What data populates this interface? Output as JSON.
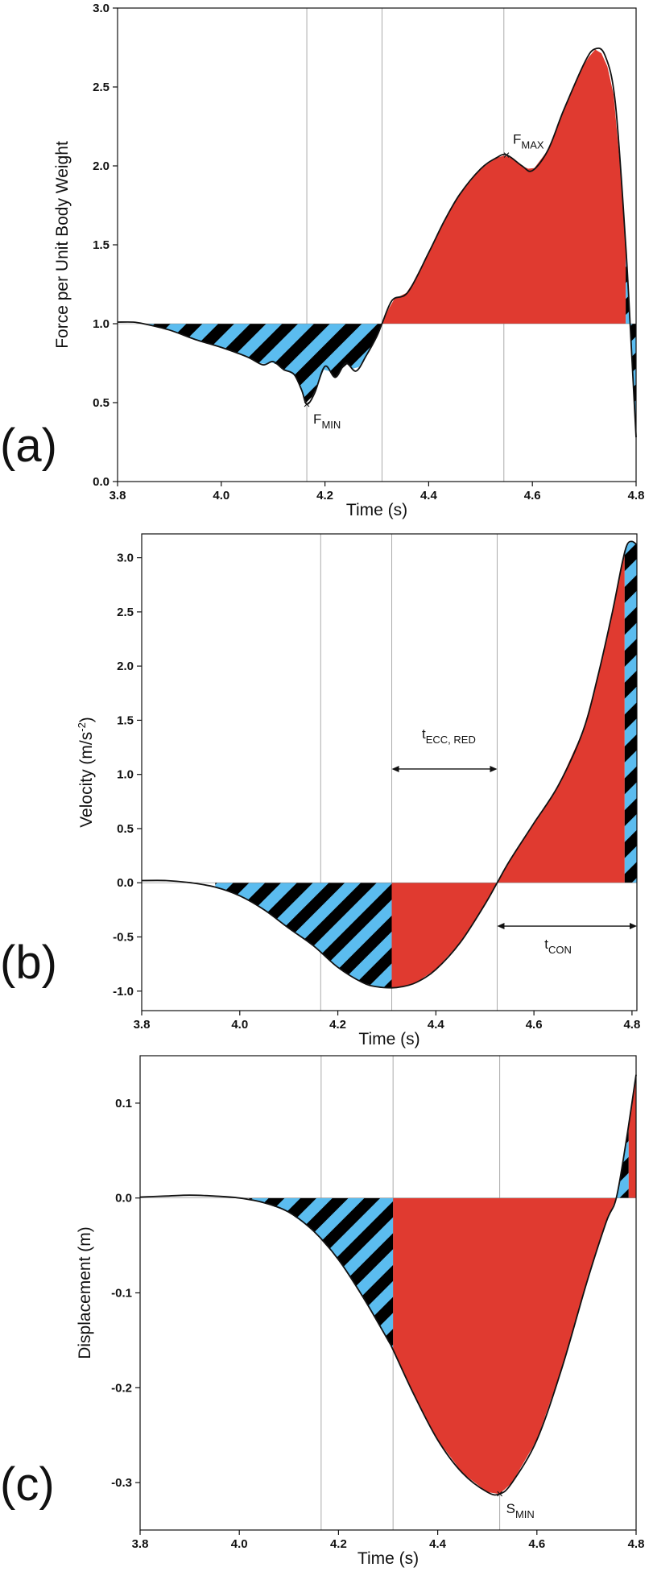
{
  "chart_data": [
    {
      "type": "area",
      "panel_label": "(a)",
      "xlabel": "Time (s)",
      "ylabel": "Force per Unit Body Weight",
      "xlim": [
        3.8,
        4.8
      ],
      "ylim": [
        0.0,
        3.0
      ],
      "xticks": [
        "3.8",
        "4.0",
        "4.2",
        "4.4",
        "4.6",
        "4.8"
      ],
      "yticks": [
        "0.0",
        "0.5",
        "1.0",
        "1.5",
        "2.0",
        "2.5",
        "3.0"
      ],
      "baseline": 1.0,
      "vlines": [
        4.165,
        4.31,
        4.545
      ],
      "series": [
        {
          "name": "force",
          "x": [
            3.8,
            3.83,
            3.85,
            3.9,
            3.95,
            4.0,
            4.05,
            4.08,
            4.1,
            4.12,
            4.14,
            4.155,
            4.165,
            4.18,
            4.2,
            4.22,
            4.24,
            4.26,
            4.28,
            4.3,
            4.31,
            4.33,
            4.36,
            4.4,
            4.43,
            4.46,
            4.5,
            4.53,
            4.55,
            4.58,
            4.6,
            4.63,
            4.66,
            4.7,
            4.72,
            4.74,
            4.76,
            4.78,
            4.79,
            4.8
          ],
          "y": [
            1.01,
            1.01,
            1.0,
            0.96,
            0.9,
            0.85,
            0.79,
            0.74,
            0.76,
            0.71,
            0.68,
            0.58,
            0.49,
            0.56,
            0.73,
            0.66,
            0.75,
            0.7,
            0.8,
            0.92,
            1.0,
            1.15,
            1.2,
            1.45,
            1.65,
            1.82,
            1.98,
            2.05,
            2.07,
            2.0,
            1.97,
            2.1,
            2.35,
            2.65,
            2.74,
            2.7,
            2.4,
            1.5,
            0.9,
            0.28
          ]
        }
      ],
      "annotations": [
        {
          "label": "F",
          "sub": "MIN",
          "x": 4.165,
          "y": 0.49
        },
        {
          "label": "F",
          "sub": "MAX",
          "x": 4.55,
          "y": 2.07
        }
      ]
    },
    {
      "type": "area",
      "panel_label": "(b)",
      "xlabel": "Time (s)",
      "ylabel": "Velocity (m/s",
      "ylabel_sup": "-2",
      "ylabel_end": ")",
      "xlim": [
        3.8,
        4.81
      ],
      "ylim": [
        -1.18,
        3.22
      ],
      "xticks": [
        "3.8",
        "4.0",
        "4.2",
        "4.4",
        "4.6",
        "4.8"
      ],
      "yticks": [
        "-1.0",
        "-0.5",
        "0.0",
        "0.5",
        "1.0",
        "1.5",
        "2.0",
        "2.5",
        "3.0"
      ],
      "baseline": 0.0,
      "vlines": [
        4.165,
        4.31,
        4.525
      ],
      "series": [
        {
          "name": "velocity",
          "x": [
            3.8,
            3.85,
            3.9,
            3.95,
            4.0,
            4.05,
            4.1,
            4.15,
            4.2,
            4.25,
            4.28,
            4.31,
            4.33,
            4.36,
            4.4,
            4.45,
            4.5,
            4.525,
            4.55,
            4.6,
            4.65,
            4.7,
            4.73,
            4.76,
            4.78,
            4.79,
            4.8,
            4.81
          ],
          "y": [
            0.02,
            0.02,
            0.0,
            -0.04,
            -0.12,
            -0.25,
            -0.42,
            -0.58,
            -0.78,
            -0.92,
            -0.96,
            -0.97,
            -0.96,
            -0.92,
            -0.8,
            -0.55,
            -0.2,
            0.0,
            0.2,
            0.55,
            0.9,
            1.4,
            1.9,
            2.5,
            2.95,
            3.12,
            3.15,
            3.12
          ]
        }
      ],
      "annotations": [
        {
          "label": "t",
          "sub": "ECC, RED",
          "from": 4.31,
          "to": 4.525,
          "y": 1.05
        },
        {
          "label": "t",
          "sub": "CON",
          "from": 4.525,
          "to": 4.81,
          "y": -0.4
        }
      ]
    },
    {
      "type": "area",
      "panel_label": "(c)",
      "xlabel": "Time (s)",
      "ylabel": "Displacement (m)",
      "xlim": [
        3.8,
        4.8
      ],
      "ylim": [
        -0.35,
        0.15
      ],
      "xticks": [
        "3.8",
        "4.0",
        "4.2",
        "4.4",
        "4.6",
        "4.8"
      ],
      "yticks": [
        "-0.3",
        "-0.2",
        "-0.1",
        "0.0",
        "0.1"
      ],
      "baseline": 0.0,
      "vlines": [
        4.165,
        4.31,
        4.525
      ],
      "series": [
        {
          "name": "displacement",
          "x": [
            3.8,
            3.85,
            3.9,
            3.95,
            4.0,
            4.05,
            4.1,
            4.15,
            4.2,
            4.25,
            4.3,
            4.31,
            4.35,
            4.4,
            4.45,
            4.5,
            4.525,
            4.55,
            4.6,
            4.65,
            4.7,
            4.74,
            4.76,
            4.78,
            4.8
          ],
          "y": [
            0.001,
            0.002,
            0.003,
            0.002,
            0.0,
            -0.005,
            -0.015,
            -0.035,
            -0.065,
            -0.105,
            -0.15,
            -0.16,
            -0.205,
            -0.255,
            -0.29,
            -0.31,
            -0.312,
            -0.3,
            -0.255,
            -0.18,
            -0.09,
            -0.025,
            0.0,
            0.06,
            0.13
          ]
        }
      ],
      "annotations": [
        {
          "label": "S",
          "sub": "MIN",
          "x": 4.525,
          "y": -0.312
        }
      ]
    }
  ],
  "colors": {
    "red": "#e03a30",
    "blue": "#5bbcef",
    "black": "#000000",
    "grid": "#aaaaaa"
  }
}
